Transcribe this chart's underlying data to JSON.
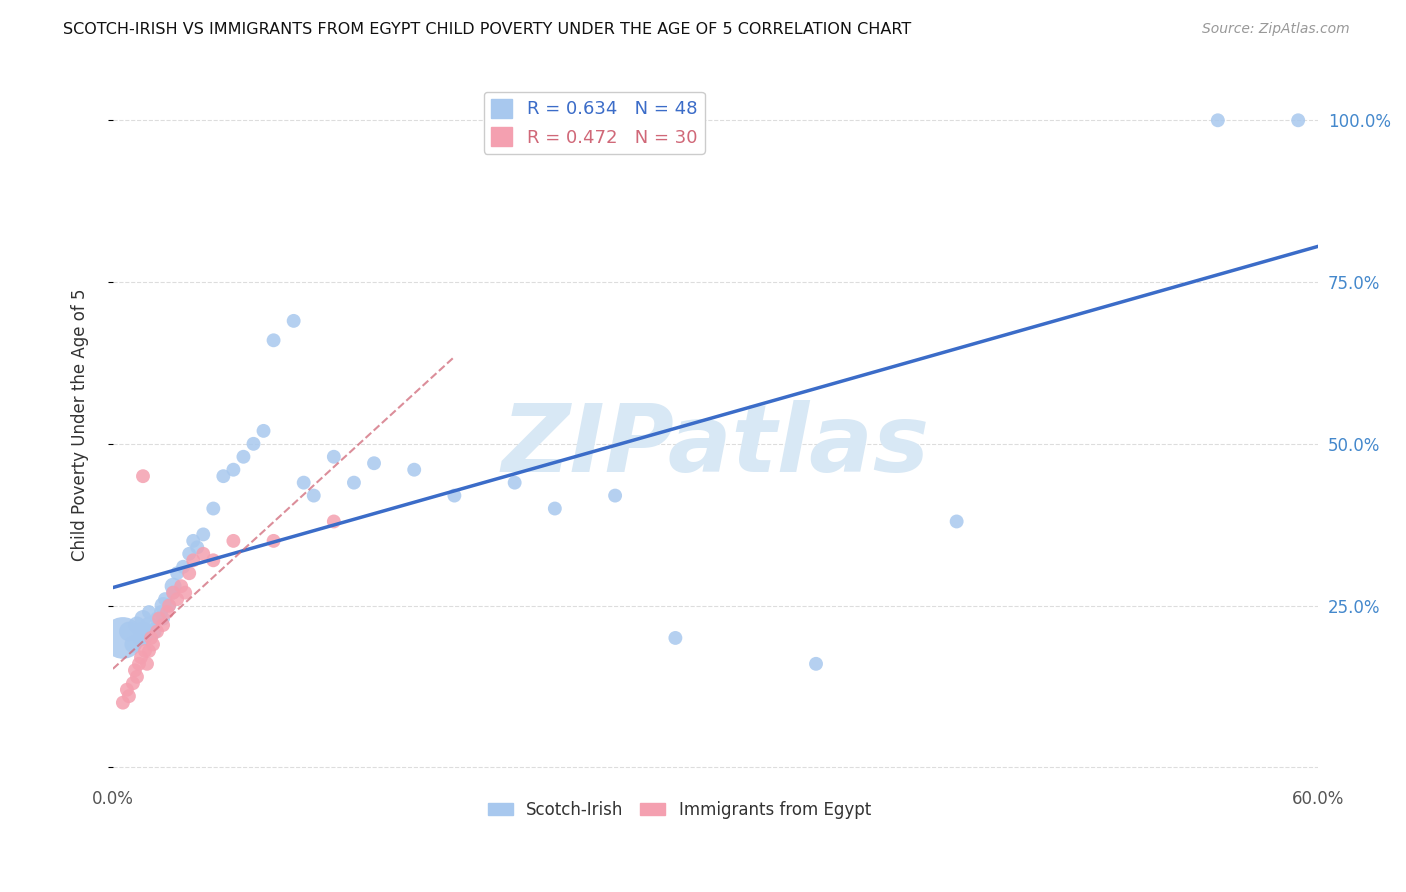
{
  "title": "SCOTCH-IRISH VS IMMIGRANTS FROM EGYPT CHILD POVERTY UNDER THE AGE OF 5 CORRELATION CHART",
  "source": "Source: ZipAtlas.com",
  "ylabel": "Child Poverty Under the Age of 5",
  "xlim": [
    0.0,
    0.6
  ],
  "ylim": [
    -0.02,
    1.08
  ],
  "blue_R": 0.634,
  "blue_N": 48,
  "pink_R": 0.472,
  "pink_N": 30,
  "blue_color": "#A8C8EE",
  "pink_color": "#F4A0B0",
  "blue_line_color": "#3B6CC8",
  "pink_line_color": "#D06878",
  "watermark": "ZIPatlas",
  "watermark_color": "#D8E8F5",
  "grid_color": "#DDDDDD",
  "blue_x": [
    0.005,
    0.008,
    0.01,
    0.012,
    0.014,
    0.015,
    0.015,
    0.016,
    0.018,
    0.018,
    0.02,
    0.022,
    0.024,
    0.025,
    0.025,
    0.026,
    0.028,
    0.03,
    0.03,
    0.032,
    0.035,
    0.038,
    0.04,
    0.042,
    0.045,
    0.05,
    0.055,
    0.06,
    0.065,
    0.07,
    0.075,
    0.08,
    0.09,
    0.095,
    0.1,
    0.11,
    0.12,
    0.13,
    0.15,
    0.17,
    0.2,
    0.22,
    0.25,
    0.28,
    0.35,
    0.42,
    0.55,
    0.59
  ],
  "blue_y": [
    0.2,
    0.21,
    0.19,
    0.22,
    0.2,
    0.21,
    0.23,
    0.2,
    0.22,
    0.24,
    0.21,
    0.23,
    0.24,
    0.25,
    0.23,
    0.26,
    0.25,
    0.28,
    0.27,
    0.3,
    0.31,
    0.33,
    0.35,
    0.34,
    0.36,
    0.4,
    0.45,
    0.46,
    0.48,
    0.5,
    0.52,
    0.66,
    0.69,
    0.44,
    0.42,
    0.48,
    0.44,
    0.47,
    0.46,
    0.42,
    0.44,
    0.4,
    0.42,
    0.2,
    0.16,
    0.38,
    1.0,
    1.0
  ],
  "blue_size": [
    900,
    200,
    150,
    150,
    150,
    200,
    150,
    100,
    150,
    100,
    150,
    100,
    100,
    150,
    100,
    100,
    100,
    150,
    100,
    100,
    100,
    100,
    100,
    100,
    100,
    100,
    100,
    100,
    100,
    100,
    100,
    100,
    100,
    100,
    100,
    100,
    100,
    100,
    100,
    100,
    100,
    100,
    100,
    100,
    100,
    100,
    100,
    100
  ],
  "pink_x": [
    0.005,
    0.007,
    0.008,
    0.01,
    0.011,
    0.012,
    0.013,
    0.014,
    0.015,
    0.016,
    0.017,
    0.018,
    0.019,
    0.02,
    0.022,
    0.023,
    0.025,
    0.027,
    0.028,
    0.03,
    0.032,
    0.034,
    0.036,
    0.038,
    0.04,
    0.045,
    0.05,
    0.06,
    0.08,
    0.11
  ],
  "pink_y": [
    0.1,
    0.12,
    0.11,
    0.13,
    0.15,
    0.14,
    0.16,
    0.17,
    0.45,
    0.18,
    0.16,
    0.18,
    0.2,
    0.19,
    0.21,
    0.23,
    0.22,
    0.24,
    0.25,
    0.27,
    0.26,
    0.28,
    0.27,
    0.3,
    0.32,
    0.33,
    0.32,
    0.35,
    0.35,
    0.38
  ],
  "pink_size": [
    100,
    100,
    100,
    100,
    100,
    100,
    100,
    100,
    100,
    100,
    100,
    100,
    100,
    100,
    100,
    100,
    100,
    100,
    100,
    100,
    100,
    100,
    100,
    100,
    100,
    100,
    100,
    100,
    100,
    100
  ]
}
